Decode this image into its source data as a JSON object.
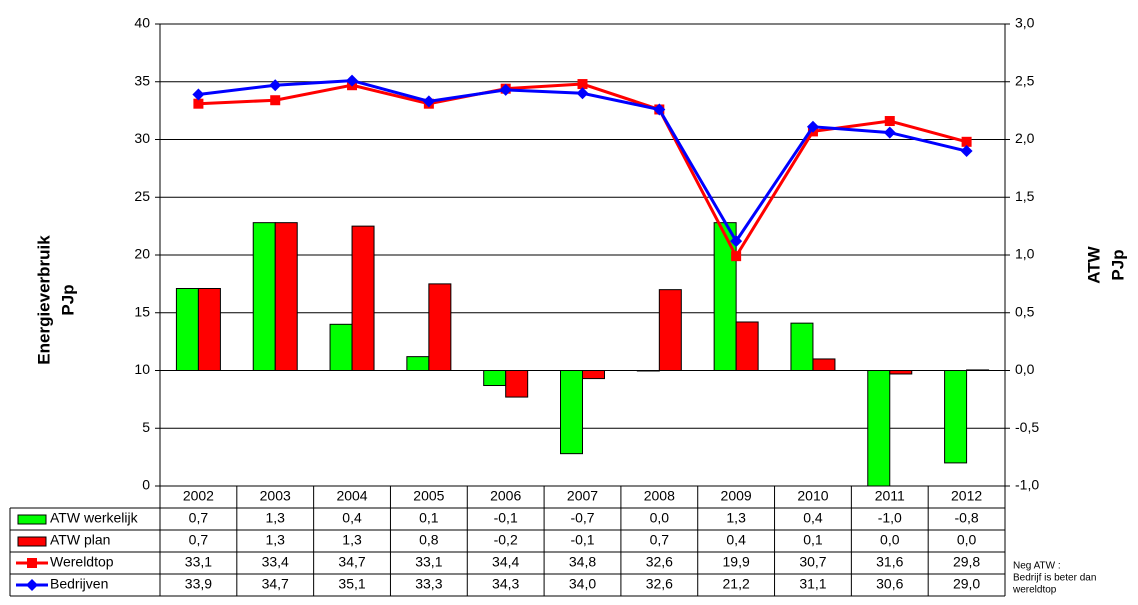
{
  "chart_data": {
    "type": "bar-line",
    "categories": [
      "2002",
      "2003",
      "2004",
      "2005",
      "2006",
      "2007",
      "2008",
      "2009",
      "2010",
      "2011",
      "2012"
    ],
    "ylabel": [
      "Energieverbruik",
      "PJp"
    ],
    "y2label": [
      "ATW",
      "PJp"
    ],
    "ylim": [
      0,
      40
    ],
    "yticks": [
      0,
      5,
      10,
      15,
      20,
      25,
      30,
      35,
      40
    ],
    "y2lim": [
      -1,
      3
    ],
    "y2ticks": [
      {
        "value": -1,
        "label": "-1,0"
      },
      {
        "value": -0.5,
        "label": "-0,5"
      },
      {
        "value": 0,
        "label": "0,0"
      },
      {
        "value": 0.5,
        "label": "0,5"
      },
      {
        "value": 1,
        "label": "1,0"
      },
      {
        "value": 1.5,
        "label": "1,5"
      },
      {
        "value": 2,
        "label": "2,0"
      },
      {
        "value": 2.5,
        "label": "2,5"
      },
      {
        "value": 3,
        "label": "3,0"
      }
    ],
    "grid": true,
    "series": [
      {
        "name": "ATW werkelijk",
        "kind": "bar",
        "axis": "y2",
        "color": "#00ff00",
        "values": [
          0.71,
          1.28,
          0.4,
          0.12,
          -0.13,
          -0.72,
          0.0,
          1.28,
          0.41,
          -1.0,
          -0.8
        ],
        "value_labels": [
          "0,7",
          "1,3",
          "0,4",
          "0,1",
          "-0,1",
          "-0,7",
          "0,0",
          "1,3",
          "0,4",
          "-1,0",
          "-0,8"
        ]
      },
      {
        "name": "ATW plan",
        "kind": "bar",
        "axis": "y2",
        "color": "#ff0000",
        "values": [
          0.71,
          1.28,
          1.25,
          0.75,
          -0.23,
          -0.07,
          0.7,
          0.42,
          0.1,
          -0.03,
          0.005
        ],
        "value_labels": [
          "0,7",
          "1,3",
          "1,3",
          "0,8",
          "-0,2",
          "-0,1",
          "0,7",
          "0,4",
          "0,1",
          "0,0",
          "0,0"
        ]
      },
      {
        "name": "Wereldtop",
        "kind": "line",
        "marker": "square",
        "color": "#ff0000",
        "values": [
          33.1,
          33.4,
          34.7,
          33.1,
          34.4,
          34.8,
          32.6,
          19.9,
          30.7,
          31.6,
          29.8
        ],
        "value_labels": [
          "33,1",
          "33,4",
          "34,7",
          "33,1",
          "34,4",
          "34,8",
          "32,6",
          "19,9",
          "30,7",
          "31,6",
          "29,8"
        ]
      },
      {
        "name": "Bedrijven",
        "kind": "line",
        "marker": "diamond",
        "color": "#0000ff",
        "values": [
          33.9,
          34.7,
          35.1,
          33.3,
          34.3,
          34.0,
          32.6,
          21.2,
          31.1,
          30.6,
          29.0
        ],
        "value_labels": [
          "33,9",
          "34,7",
          "35,1",
          "33,3",
          "34,3",
          "34,0",
          "32,6",
          "21,2",
          "31,1",
          "30,6",
          "29,0"
        ]
      }
    ],
    "annotation": [
      "Neg ATW :",
      "Bedrijf is beter dan",
      "wereldtop"
    ]
  }
}
